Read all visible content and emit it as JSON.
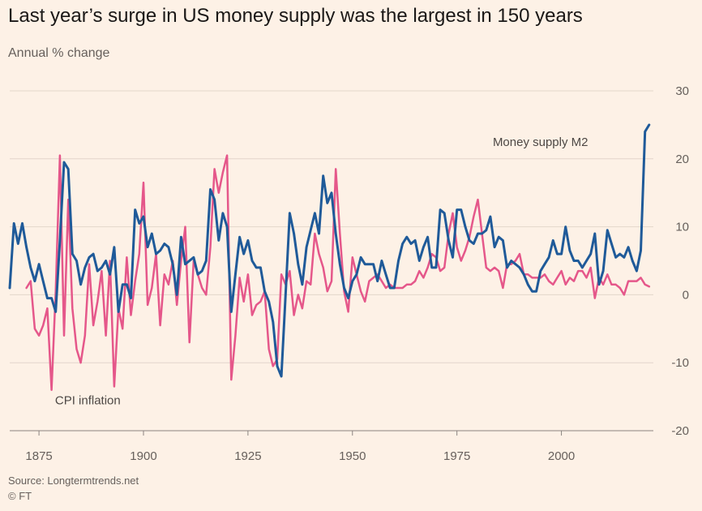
{
  "title": "Last year’s surge in US money supply was the largest in 150 years",
  "subtitle": "Annual % change",
  "source": "Source: Longtermtrends.net",
  "credit": "© FT",
  "chart_data": {
    "type": "line",
    "xlim": [
      1868,
      2022
    ],
    "ylim": [
      -20,
      30
    ],
    "x_ticks": [
      1875,
      1900,
      1925,
      1950,
      1975,
      2000
    ],
    "y_ticks": [
      30,
      20,
      10,
      0,
      -10,
      -20
    ],
    "y_axis_side": "right",
    "grid": "horizontal",
    "series": [
      {
        "name": "Money supply M2",
        "color": "#1f5a99",
        "points": [
          [
            1868,
            1
          ],
          [
            1869,
            10.5
          ],
          [
            1870,
            7.5
          ],
          [
            1871,
            10.5
          ],
          [
            1872,
            7
          ],
          [
            1873,
            4
          ],
          [
            1874,
            2
          ],
          [
            1875,
            4.5
          ],
          [
            1876,
            2
          ],
          [
            1877,
            -0.5
          ],
          [
            1878,
            -0.5
          ],
          [
            1879,
            -2.5
          ],
          [
            1880,
            8
          ],
          [
            1881,
            19.5
          ],
          [
            1882,
            18.5
          ],
          [
            1883,
            6
          ],
          [
            1884,
            5
          ],
          [
            1885,
            1.5
          ],
          [
            1886,
            4
          ],
          [
            1887,
            5.5
          ],
          [
            1888,
            6
          ],
          [
            1889,
            3.5
          ],
          [
            1890,
            4
          ],
          [
            1891,
            5
          ],
          [
            1892,
            3
          ],
          [
            1893,
            7
          ],
          [
            1894,
            -2.5
          ],
          [
            1895,
            1.5
          ],
          [
            1896,
            1.5
          ],
          [
            1897,
            -0.5
          ],
          [
            1898,
            12.5
          ],
          [
            1899,
            10.5
          ],
          [
            1900,
            11.5
          ],
          [
            1901,
            7
          ],
          [
            1902,
            9
          ],
          [
            1903,
            6
          ],
          [
            1904,
            6.5
          ],
          [
            1905,
            7.5
          ],
          [
            1906,
            7
          ],
          [
            1907,
            4.5
          ],
          [
            1908,
            0
          ],
          [
            1909,
            8.5
          ],
          [
            1910,
            4.5
          ],
          [
            1911,
            5
          ],
          [
            1912,
            5.5
          ],
          [
            1913,
            3
          ],
          [
            1914,
            3.5
          ],
          [
            1915,
            5
          ],
          [
            1916,
            15.5
          ],
          [
            1917,
            14
          ],
          [
            1918,
            8
          ],
          [
            1919,
            12
          ],
          [
            1920,
            10
          ],
          [
            1921,
            -2.5
          ],
          [
            1922,
            3
          ],
          [
            1923,
            8.5
          ],
          [
            1924,
            6
          ],
          [
            1925,
            8
          ],
          [
            1926,
            5
          ],
          [
            1927,
            4
          ],
          [
            1928,
            4
          ],
          [
            1929,
            0.5
          ],
          [
            1930,
            -1
          ],
          [
            1931,
            -4
          ],
          [
            1932,
            -10.5
          ],
          [
            1933,
            -12
          ],
          [
            1934,
            0
          ],
          [
            1935,
            12
          ],
          [
            1936,
            9
          ],
          [
            1937,
            4.5
          ],
          [
            1938,
            1.5
          ],
          [
            1939,
            7
          ],
          [
            1940,
            9.5
          ],
          [
            1941,
            12
          ],
          [
            1942,
            9
          ],
          [
            1943,
            17.5
          ],
          [
            1944,
            13.5
          ],
          [
            1945,
            15
          ],
          [
            1946,
            9
          ],
          [
            1947,
            4.5
          ],
          [
            1948,
            1
          ],
          [
            1949,
            -0.5
          ],
          [
            1950,
            2
          ],
          [
            1951,
            3
          ],
          [
            1952,
            5.5
          ],
          [
            1953,
            4.5
          ],
          [
            1954,
            4.5
          ],
          [
            1955,
            4.5
          ],
          [
            1956,
            2
          ],
          [
            1957,
            5
          ],
          [
            1958,
            3
          ],
          [
            1959,
            1
          ],
          [
            1960,
            1
          ],
          [
            1961,
            5
          ],
          [
            1962,
            7.5
          ],
          [
            1963,
            8.5
          ],
          [
            1964,
            7.5
          ],
          [
            1965,
            8
          ],
          [
            1966,
            5
          ],
          [
            1967,
            7
          ],
          [
            1968,
            8.5
          ],
          [
            1969,
            4
          ],
          [
            1970,
            4
          ],
          [
            1971,
            12.5
          ],
          [
            1972,
            12
          ],
          [
            1973,
            8
          ],
          [
            1974,
            5.5
          ],
          [
            1975,
            12.5
          ],
          [
            1976,
            12.5
          ],
          [
            1977,
            10
          ],
          [
            1978,
            8
          ],
          [
            1979,
            7.5
          ],
          [
            1980,
            9
          ],
          [
            1981,
            9
          ],
          [
            1982,
            9.5
          ],
          [
            1983,
            11.5
          ],
          [
            1984,
            7
          ],
          [
            1985,
            8.5
          ],
          [
            1986,
            8
          ],
          [
            1987,
            4
          ],
          [
            1988,
            5
          ],
          [
            1989,
            4.5
          ],
          [
            1990,
            4
          ],
          [
            1991,
            3
          ],
          [
            1992,
            1.5
          ],
          [
            1993,
            0.5
          ],
          [
            1994,
            0.5
          ],
          [
            1995,
            3.5
          ],
          [
            1996,
            4.5
          ],
          [
            1997,
            5.5
          ],
          [
            1998,
            8
          ],
          [
            1999,
            6
          ],
          [
            2000,
            6
          ],
          [
            2001,
            10
          ],
          [
            2002,
            6.5
          ],
          [
            2003,
            5
          ],
          [
            2004,
            5
          ],
          [
            2005,
            4
          ],
          [
            2006,
            5
          ],
          [
            2007,
            6
          ],
          [
            2008,
            9
          ],
          [
            2009,
            1.5
          ],
          [
            2010,
            3.5
          ],
          [
            2011,
            9.5
          ],
          [
            2012,
            7.5
          ],
          [
            2013,
            5.5
          ],
          [
            2014,
            6
          ],
          [
            2015,
            5.5
          ],
          [
            2016,
            7
          ],
          [
            2017,
            5
          ],
          [
            2018,
            3.5
          ],
          [
            2019,
            6.5
          ],
          [
            2020,
            24
          ],
          [
            2021,
            25
          ]
        ]
      },
      {
        "name": "CPI inflation",
        "color": "#e5578a",
        "points": [
          [
            1872,
            1
          ],
          [
            1873,
            2
          ],
          [
            1874,
            -5
          ],
          [
            1875,
            -6
          ],
          [
            1876,
            -4.5
          ],
          [
            1877,
            -2
          ],
          [
            1878,
            -14
          ],
          [
            1879,
            0.5
          ],
          [
            1880,
            20.5
          ],
          [
            1881,
            -6
          ],
          [
            1882,
            14
          ],
          [
            1883,
            -2
          ],
          [
            1884,
            -8
          ],
          [
            1885,
            -10
          ],
          [
            1886,
            -6
          ],
          [
            1887,
            4.5
          ],
          [
            1888,
            -4.5
          ],
          [
            1889,
            -1
          ],
          [
            1890,
            3.5
          ],
          [
            1891,
            -6
          ],
          [
            1892,
            5
          ],
          [
            1893,
            -13.5
          ],
          [
            1894,
            -2
          ],
          [
            1895,
            -5
          ],
          [
            1896,
            5.5
          ],
          [
            1897,
            -3
          ],
          [
            1898,
            2
          ],
          [
            1899,
            6
          ],
          [
            1900,
            16.5
          ],
          [
            1901,
            -1.5
          ],
          [
            1902,
            1
          ],
          [
            1903,
            6
          ],
          [
            1904,
            -4.5
          ],
          [
            1905,
            3
          ],
          [
            1906,
            1.5
          ],
          [
            1907,
            5
          ],
          [
            1908,
            -1.5
          ],
          [
            1909,
            5
          ],
          [
            1910,
            10
          ],
          [
            1911,
            -7
          ],
          [
            1912,
            5
          ],
          [
            1913,
            3
          ],
          [
            1914,
            1
          ],
          [
            1915,
            0
          ],
          [
            1916,
            7
          ],
          [
            1917,
            18.5
          ],
          [
            1918,
            15
          ],
          [
            1919,
            18
          ],
          [
            1920,
            20.5
          ],
          [
            1921,
            -12.5
          ],
          [
            1922,
            -6
          ],
          [
            1923,
            2.5
          ],
          [
            1924,
            -1
          ],
          [
            1925,
            3
          ],
          [
            1926,
            -3
          ],
          [
            1927,
            -1.5
          ],
          [
            1928,
            -1
          ],
          [
            1929,
            0.5
          ],
          [
            1930,
            -8
          ],
          [
            1931,
            -10.5
          ],
          [
            1932,
            -9.5
          ],
          [
            1933,
            3
          ],
          [
            1934,
            1.5
          ],
          [
            1935,
            3.5
          ],
          [
            1936,
            -3
          ],
          [
            1937,
            0
          ],
          [
            1938,
            -2
          ],
          [
            1939,
            2
          ],
          [
            1940,
            1.5
          ],
          [
            1941,
            9
          ],
          [
            1942,
            6
          ],
          [
            1943,
            4
          ],
          [
            1944,
            0.5
          ],
          [
            1945,
            2
          ],
          [
            1946,
            18.5
          ],
          [
            1947,
            9
          ],
          [
            1948,
            0.5
          ],
          [
            1949,
            -2.5
          ],
          [
            1950,
            5.5
          ],
          [
            1951,
            3
          ],
          [
            1952,
            0.5
          ],
          [
            1953,
            -1
          ],
          [
            1954,
            2
          ],
          [
            1955,
            2.5
          ],
          [
            1956,
            3
          ],
          [
            1957,
            2
          ],
          [
            1958,
            1
          ],
          [
            1959,
            1.5
          ],
          [
            1960,
            1
          ],
          [
            1961,
            1
          ],
          [
            1962,
            1
          ],
          [
            1963,
            1.5
          ],
          [
            1964,
            1.5
          ],
          [
            1965,
            2
          ],
          [
            1966,
            3.5
          ],
          [
            1967,
            2.5
          ],
          [
            1968,
            4
          ],
          [
            1969,
            6
          ],
          [
            1970,
            5.5
          ],
          [
            1971,
            3.5
          ],
          [
            1972,
            4
          ],
          [
            1973,
            9
          ],
          [
            1974,
            12
          ],
          [
            1975,
            7
          ],
          [
            1976,
            5
          ],
          [
            1977,
            6.5
          ],
          [
            1978,
            8.5
          ],
          [
            1979,
            11.5
          ],
          [
            1980,
            14
          ],
          [
            1981,
            9
          ],
          [
            1982,
            4
          ],
          [
            1983,
            3.5
          ],
          [
            1984,
            4
          ],
          [
            1985,
            3.5
          ],
          [
            1986,
            1
          ],
          [
            1987,
            4.5
          ],
          [
            1988,
            4.5
          ],
          [
            1989,
            5
          ],
          [
            1990,
            6
          ],
          [
            1991,
            3
          ],
          [
            1992,
            3
          ],
          [
            1993,
            2.5
          ],
          [
            1994,
            2.5
          ],
          [
            1995,
            2.5
          ],
          [
            1996,
            3
          ],
          [
            1997,
            2
          ],
          [
            1998,
            1.5
          ],
          [
            1999,
            2.5
          ],
          [
            2000,
            3.5
          ],
          [
            2001,
            1.5
          ],
          [
            2002,
            2.5
          ],
          [
            2003,
            2
          ],
          [
            2004,
            3.5
          ],
          [
            2005,
            3.5
          ],
          [
            2006,
            2.5
          ],
          [
            2007,
            4
          ],
          [
            2008,
            -0.5
          ],
          [
            2009,
            2.5
          ],
          [
            2010,
            1.5
          ],
          [
            2011,
            3
          ],
          [
            2012,
            1.5
          ],
          [
            2013,
            1.5
          ],
          [
            2014,
            1
          ],
          [
            2015,
            0
          ],
          [
            2016,
            2
          ],
          [
            2017,
            2
          ],
          [
            2018,
            2
          ],
          [
            2019,
            2.5
          ],
          [
            2020,
            1.5
          ],
          [
            2021,
            1.2
          ]
        ]
      }
    ],
    "annotations": [
      {
        "text": "Money supply M2",
        "x": 2006,
        "y": 22.5
      },
      {
        "text": "CPI inflation",
        "x": 1880,
        "y": -15.5
      }
    ]
  }
}
